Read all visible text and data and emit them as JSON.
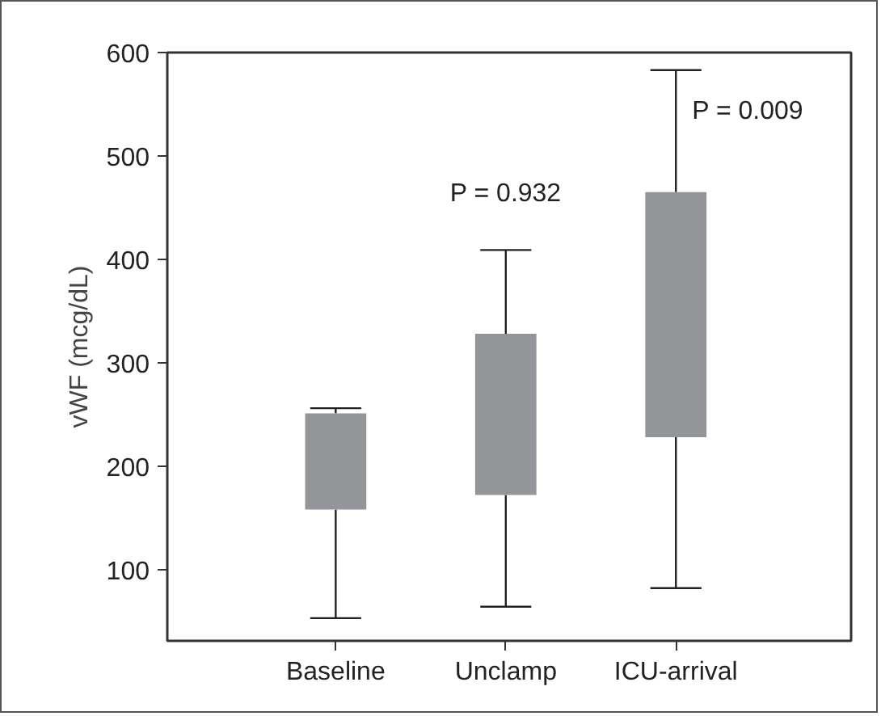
{
  "chart_data": {
    "type": "box",
    "ylabel": "vWF (mcg/dL)",
    "categories": [
      "Baseline",
      "Unclamp",
      "ICU-arrival"
    ],
    "color": "#939598",
    "boxes": [
      {
        "low": 53,
        "q1": 158,
        "median": null,
        "q3": 251,
        "high": 256
      },
      {
        "low": 64,
        "q1": 172,
        "median": null,
        "q3": 328,
        "high": 409
      },
      {
        "low": 82,
        "q1": 228,
        "median": null,
        "q3": 465,
        "high": 583
      }
    ],
    "ylim": [
      31,
      600
    ],
    "yticks": [
      100,
      200,
      300,
      400,
      500,
      600
    ],
    "grid": false,
    "annotations": [
      {
        "text": "P = 0.932",
        "x": "Unclamp",
        "y": 409
      },
      {
        "text": "P = 0.009",
        "x": "ICU-arrival",
        "y": 583
      }
    ]
  }
}
